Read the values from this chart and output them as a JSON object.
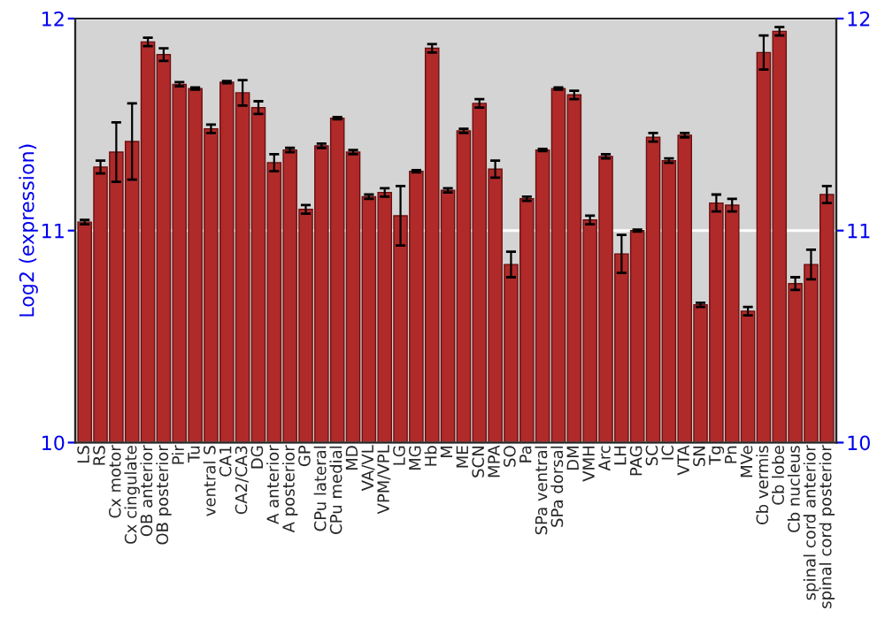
{
  "chart_data": {
    "type": "bar",
    "ylabel": "Log2 (expression)",
    "categories": [
      "LS",
      "RS",
      "Cx motor",
      "Cx cingulate",
      "OB anterior",
      "OB posterior",
      "Pir",
      "Tu",
      "ventral S",
      "CA1",
      "CA2/CA3",
      "DG",
      "A anterior",
      "A posterior",
      "GP",
      "CPu lateral",
      "CPu medial",
      "MD",
      "VA/VL",
      "VPM/VPL",
      "LG",
      "MG",
      "Hb",
      "M",
      "ME",
      "SCN",
      "MPA",
      "SO",
      "Pa",
      "SPa ventral",
      "SPa dorsal",
      "DM",
      "VMH",
      "Arc",
      "LH",
      "PAG",
      "SC",
      "IC",
      "VTA",
      "SN",
      "Tg",
      "Pn",
      "MVe",
      "Cb vermis",
      "Cb lobe",
      "Cb nucleus",
      "spinal cord anterior",
      "spinal cord posterior"
    ],
    "values": [
      11.04,
      11.3,
      11.37,
      11.42,
      11.89,
      11.83,
      11.69,
      11.67,
      11.48,
      11.7,
      11.65,
      11.58,
      11.32,
      11.38,
      11.1,
      11.4,
      11.53,
      11.37,
      11.16,
      11.18,
      11.07,
      11.28,
      11.86,
      11.19,
      11.47,
      11.6,
      11.29,
      10.84,
      11.15,
      11.38,
      11.67,
      11.64,
      11.05,
      11.35,
      10.89,
      11.0,
      11.44,
      11.33,
      11.45,
      10.65,
      11.13,
      11.12,
      10.62,
      11.84,
      11.94,
      10.75,
      10.84,
      11.17
    ],
    "errors": [
      0.01,
      0.03,
      0.14,
      0.18,
      0.02,
      0.03,
      0.01,
      0.005,
      0.02,
      0.005,
      0.06,
      0.03,
      0.04,
      0.01,
      0.02,
      0.01,
      0.005,
      0.01,
      0.01,
      0.02,
      0.14,
      0.005,
      0.02,
      0.01,
      0.01,
      0.02,
      0.04,
      0.06,
      0.01,
      0.005,
      0.005,
      0.02,
      0.02,
      0.01,
      0.09,
      0.005,
      0.02,
      0.01,
      0.01,
      0.01,
      0.04,
      0.03,
      0.02,
      0.08,
      0.02,
      0.03,
      0.07,
      0.04
    ],
    "color": "#b02a2a",
    "ylim": [
      10,
      12
    ],
    "yticks": [
      10,
      11,
      12
    ],
    "y2lim": [
      10,
      12
    ],
    "y2ticks": [
      10,
      11,
      12
    ],
    "grid": "y",
    "legend": false
  }
}
